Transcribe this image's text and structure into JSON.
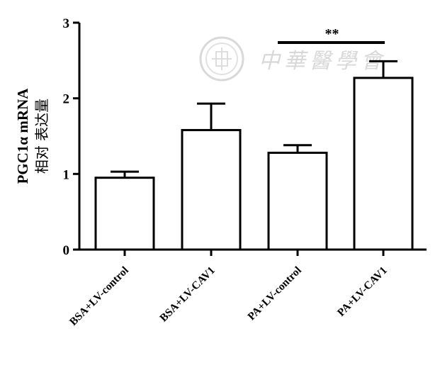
{
  "chart_data": {
    "type": "bar",
    "ylabel_line1": "PGC1α mRNA",
    "ylabel_line2": "相对 表达量",
    "ylim": [
      0,
      3
    ],
    "yticks": [
      0,
      1,
      2,
      3
    ],
    "categories": [
      "BSA+LV-control",
      "BSA+LV-CAV1",
      "PA+LV-control",
      "PA+LV-CAV1"
    ],
    "values": [
      0.95,
      1.58,
      1.28,
      2.27
    ],
    "errors": [
      0.08,
      0.35,
      0.1,
      0.22
    ],
    "significance": {
      "from": 2,
      "to": 3,
      "label": "**"
    }
  },
  "watermark": {
    "text": "中華醫學會"
  }
}
